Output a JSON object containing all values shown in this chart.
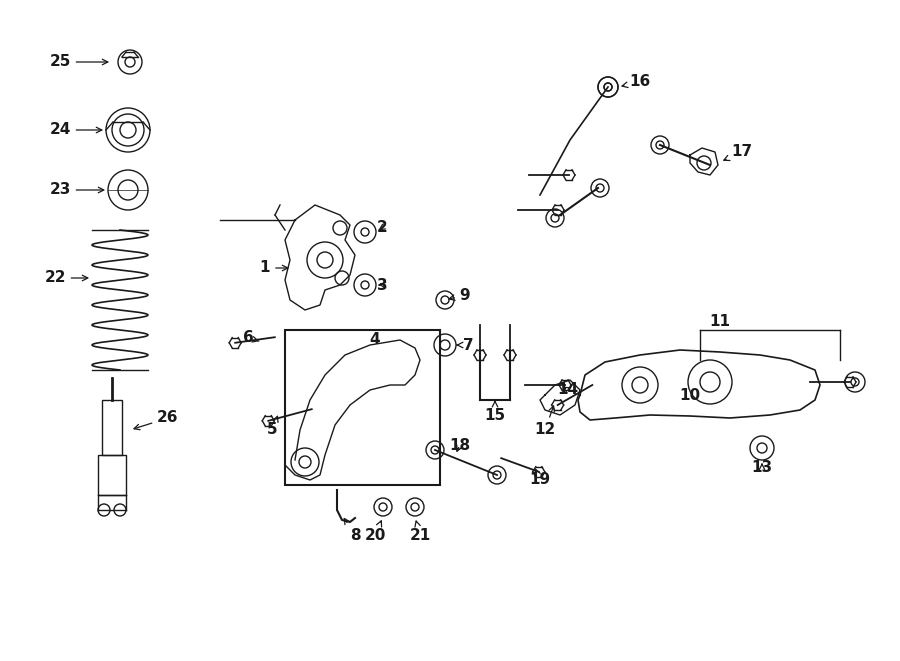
{
  "bg_color": "#ffffff",
  "line_color": "#1a1a1a",
  "figsize": [
    9.0,
    6.61
  ],
  "dpi": 100,
  "label_fontsize": 11
}
